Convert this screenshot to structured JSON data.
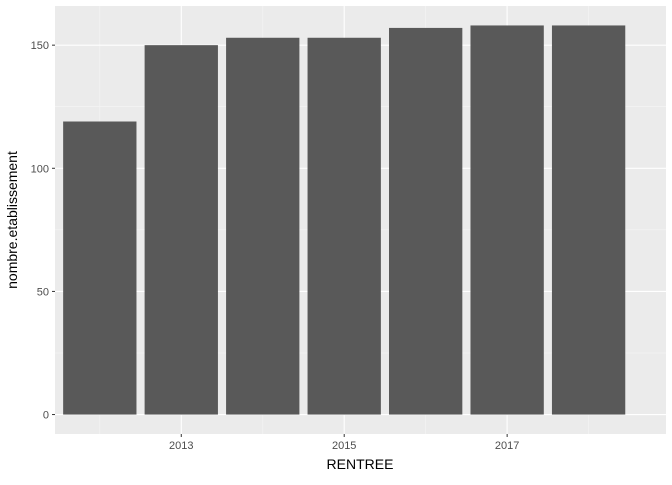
{
  "chart_data": {
    "type": "bar",
    "categories": [
      "2012",
      "2013",
      "2014",
      "2015",
      "2016",
      "2017",
      "2018"
    ],
    "x": [
      2012,
      2013,
      2014,
      2015,
      2016,
      2017,
      2018
    ],
    "values": [
      119,
      150,
      153,
      153,
      157,
      158,
      158
    ],
    "xlabel": "RENTREE",
    "ylabel": "nombre.etablissement",
    "xticks": [
      2013,
      2015,
      2017
    ],
    "xtick_labels": [
      "2013",
      "2015",
      "2017"
    ],
    "yticks": [
      0,
      50,
      100,
      150
    ],
    "ytick_labels": [
      "0",
      "50",
      "100",
      "150"
    ],
    "xlim": [
      2011.45,
      2018.95
    ],
    "ylim": [
      -7.9,
      165.9
    ],
    "grid": true,
    "legend": "none",
    "colors": {
      "bar": "#595959",
      "panel": "#ebebeb",
      "grid_major": "#ffffff",
      "grid_minor": "#f5f5f5",
      "axis_text": "#4d4d4d",
      "axis_title": "#000000",
      "tick": "#333333"
    }
  }
}
